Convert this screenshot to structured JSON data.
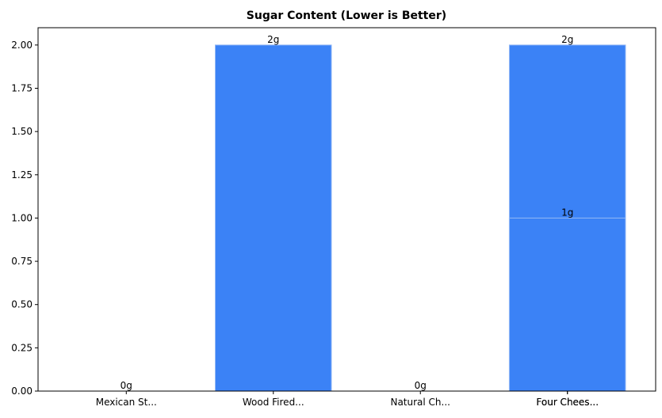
{
  "chart_data": {
    "type": "bar",
    "title": "Sugar Content (Lower is Better)",
    "categories": [
      "Mexican St...",
      "Wood Fired...",
      "Natural Ch...",
      "Four Chees...",
      "Four Chees..."
    ],
    "values": [
      0,
      2,
      0,
      2,
      1
    ],
    "value_labels": [
      "0g",
      "2g",
      "0g",
      "2g",
      "1g"
    ],
    "color": "#3b82f6",
    "ylim": [
      0,
      2.1
    ],
    "yticks": [
      {
        "value": 0,
        "label": "0.00"
      },
      {
        "value": 0.25,
        "label": "0.25"
      },
      {
        "value": 0.5,
        "label": "0.50"
      },
      {
        "value": 0.75,
        "label": "0.75"
      },
      {
        "value": 1,
        "label": "1.00"
      },
      {
        "value": 1.25,
        "label": "1.25"
      },
      {
        "value": 1.5,
        "label": "1.50"
      },
      {
        "value": 1.75,
        "label": "1.75"
      },
      {
        "value": 2,
        "label": "2.00"
      }
    ],
    "grid": false
  }
}
